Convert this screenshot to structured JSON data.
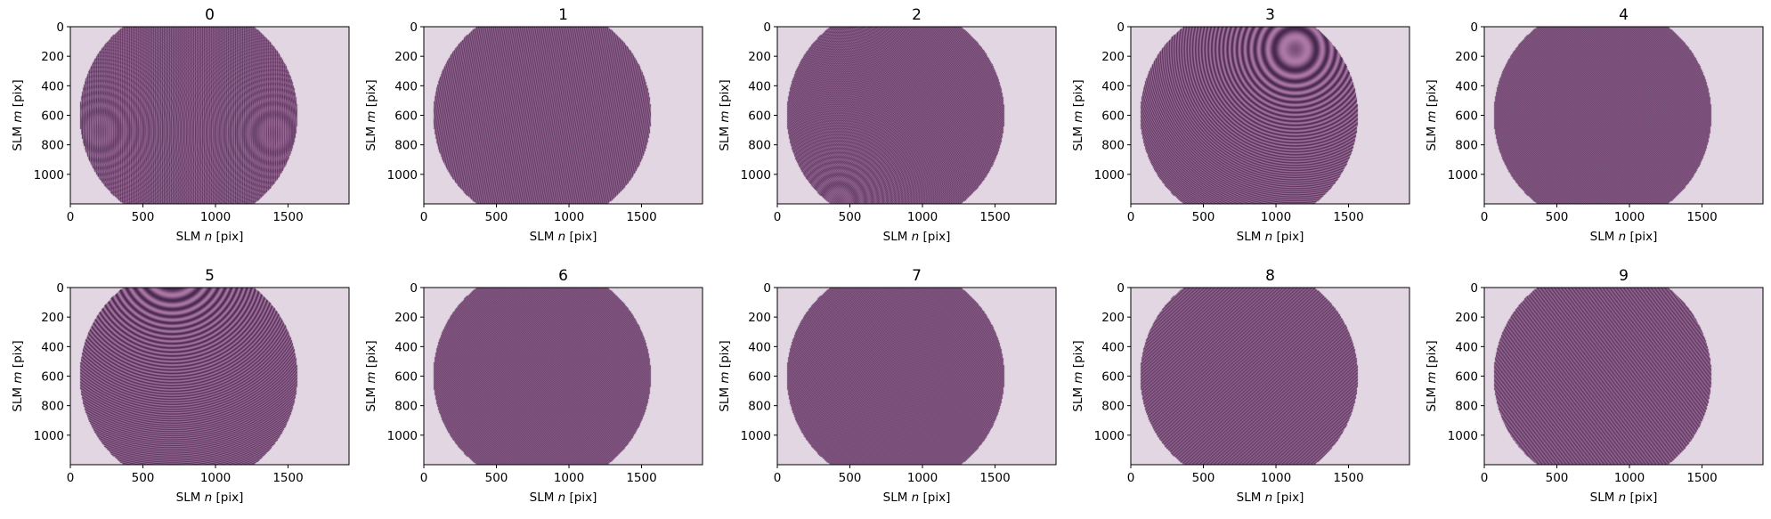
{
  "figure": {
    "background": "#ffffff",
    "pattern_bg": "#e1d6e1",
    "pattern_dark": "#2d1430",
    "pattern_light": "#c98fb8",
    "pattern_hue": "#7a4f86"
  },
  "chart_data": [
    {
      "type": "heatmap",
      "title": "0",
      "xlabel_prefix": "SLM ",
      "xlabel_var": "n",
      "xlabel_suffix": " [pix]",
      "ylabel_prefix": "SLM ",
      "ylabel_var": "m",
      "ylabel_suffix": " [pix]",
      "xlim": [
        0,
        1920
      ],
      "ylim": [
        1200,
        0
      ],
      "xticks": [
        0,
        500,
        1000,
        1500
      ],
      "yticks": [
        0,
        200,
        400,
        600,
        800,
        1000
      ],
      "aperture_center": [
        815,
        600
      ],
      "aperture_radius": 750,
      "fringe": {
        "kind": "vertical",
        "freq": 0.16,
        "ring_centers": [
          [
            200,
            700
          ],
          [
            1400,
            720
          ]
        ]
      }
    },
    {
      "type": "heatmap",
      "title": "1",
      "xlabel_prefix": "SLM ",
      "xlabel_var": "n",
      "xlabel_suffix": " [pix]",
      "ylabel_prefix": "SLM ",
      "ylabel_var": "m",
      "ylabel_suffix": " [pix]",
      "xlim": [
        0,
        1920
      ],
      "ylim": [
        1200,
        0
      ],
      "xticks": [
        0,
        500,
        1000,
        1500
      ],
      "yticks": [
        0,
        200,
        400,
        600,
        800,
        1000
      ],
      "aperture_center": [
        815,
        600
      ],
      "aperture_radius": 750,
      "fringe": {
        "kind": "tilted",
        "freq": 0.18,
        "angle": 8,
        "ring_centers": []
      }
    },
    {
      "type": "heatmap",
      "title": "2",
      "xlabel_prefix": "SLM ",
      "xlabel_var": "n",
      "xlabel_suffix": " [pix]",
      "ylabel_prefix": "SLM ",
      "ylabel_var": "m",
      "ylabel_suffix": " [pix]",
      "xlim": [
        0,
        1920
      ],
      "ylim": [
        1200,
        0
      ],
      "xticks": [
        0,
        500,
        1000,
        1500
      ],
      "yticks": [
        0,
        200,
        400,
        600,
        800,
        1000
      ],
      "aperture_center": [
        815,
        600
      ],
      "aperture_radius": 750,
      "fringe": {
        "kind": "tilted",
        "freq": 0.2,
        "angle": 35,
        "ring_centers": [
          [
            420,
            1180
          ]
        ]
      }
    },
    {
      "type": "heatmap",
      "title": "3",
      "xlabel_prefix": "SLM ",
      "xlabel_var": "n",
      "xlabel_suffix": " [pix]",
      "ylabel_prefix": "SLM ",
      "ylabel_var": "m",
      "ylabel_suffix": " [pix]",
      "xlim": [
        0,
        1920
      ],
      "ylim": [
        1200,
        0
      ],
      "xticks": [
        0,
        500,
        1000,
        1500
      ],
      "yticks": [
        0,
        200,
        400,
        600,
        800,
        1000
      ],
      "aperture_center": [
        815,
        600
      ],
      "aperture_radius": 750,
      "fringe": {
        "kind": "rings",
        "freq": 0.14,
        "ring_centers": [
          [
            1130,
            150
          ]
        ]
      }
    },
    {
      "type": "heatmap",
      "title": "4",
      "xlabel_prefix": "SLM ",
      "xlabel_var": "n",
      "xlabel_suffix": " [pix]",
      "ylabel_prefix": "SLM ",
      "ylabel_var": "m",
      "ylabel_suffix": " [pix]",
      "xlim": [
        0,
        1920
      ],
      "ylim": [
        1200,
        0
      ],
      "xticks": [
        0,
        500,
        1000,
        1500
      ],
      "yticks": [
        0,
        200,
        400,
        600,
        800,
        1000
      ],
      "aperture_center": [
        815,
        600
      ],
      "aperture_radius": 750,
      "fringe": {
        "kind": "crosshatch",
        "freq": 0.22,
        "ring_centers": []
      }
    },
    {
      "type": "heatmap",
      "title": "5",
      "xlabel_prefix": "SLM ",
      "xlabel_var": "n",
      "xlabel_suffix": " [pix]",
      "ylabel_prefix": "SLM ",
      "ylabel_var": "m",
      "ylabel_suffix": " [pix]",
      "xlim": [
        0,
        1920
      ],
      "ylim": [
        1200,
        0
      ],
      "xticks": [
        0,
        500,
        1000,
        1500
      ],
      "yticks": [
        0,
        200,
        400,
        600,
        800,
        1000
      ],
      "aperture_center": [
        815,
        600
      ],
      "aperture_radius": 750,
      "fringe": {
        "kind": "rings",
        "freq": 0.12,
        "ring_centers": [
          [
            700,
            -150
          ]
        ]
      }
    },
    {
      "type": "heatmap",
      "title": "6",
      "xlabel_prefix": "SLM ",
      "xlabel_var": "n",
      "xlabel_suffix": " [pix]",
      "ylabel_prefix": "SLM ",
      "ylabel_var": "m",
      "ylabel_suffix": " [pix]",
      "xlim": [
        0,
        1920
      ],
      "ylim": [
        1200,
        0
      ],
      "xticks": [
        0,
        500,
        1000,
        1500
      ],
      "yticks": [
        0,
        200,
        400,
        600,
        800,
        1000
      ],
      "aperture_center": [
        815,
        600
      ],
      "aperture_radius": 750,
      "fringe": {
        "kind": "crosshatch",
        "freq": 0.24,
        "ring_centers": []
      }
    },
    {
      "type": "heatmap",
      "title": "7",
      "xlabel_prefix": "SLM ",
      "xlabel_var": "n",
      "xlabel_suffix": " [pix]",
      "ylabel_prefix": "SLM ",
      "ylabel_var": "m",
      "ylabel_suffix": " [pix]",
      "xlim": [
        0,
        1920
      ],
      "ylim": [
        1200,
        0
      ],
      "xticks": [
        0,
        500,
        1000,
        1500
      ],
      "yticks": [
        0,
        200,
        400,
        600,
        800,
        1000
      ],
      "aperture_center": [
        815,
        600
      ],
      "aperture_radius": 750,
      "fringe": {
        "kind": "crosshatch",
        "freq": 0.26,
        "ring_centers": []
      }
    },
    {
      "type": "heatmap",
      "title": "8",
      "xlabel_prefix": "SLM ",
      "xlabel_var": "n",
      "xlabel_suffix": " [pix]",
      "ylabel_prefix": "SLM ",
      "ylabel_var": "m",
      "ylabel_suffix": " [pix]",
      "xlim": [
        0,
        1920
      ],
      "ylim": [
        1200,
        0
      ],
      "xticks": [
        0,
        500,
        1000,
        1500
      ],
      "yticks": [
        0,
        200,
        400,
        600,
        800,
        1000
      ],
      "aperture_center": [
        815,
        600
      ],
      "aperture_radius": 750,
      "fringe": {
        "kind": "tilted",
        "freq": 0.25,
        "angle": -20,
        "ring_centers": []
      }
    },
    {
      "type": "heatmap",
      "title": "9",
      "xlabel_prefix": "SLM ",
      "xlabel_var": "n",
      "xlabel_suffix": " [pix]",
      "ylabel_prefix": "SLM ",
      "ylabel_var": "m",
      "ylabel_suffix": " [pix]",
      "xlim": [
        0,
        1920
      ],
      "ylim": [
        1200,
        0
      ],
      "xticks": [
        0,
        500,
        1000,
        1500
      ],
      "yticks": [
        0,
        200,
        400,
        600,
        800,
        1000
      ],
      "aperture_center": [
        815,
        600
      ],
      "aperture_radius": 750,
      "fringe": {
        "kind": "tilted",
        "freq": 0.24,
        "angle": 15,
        "ring_centers": []
      }
    }
  ]
}
